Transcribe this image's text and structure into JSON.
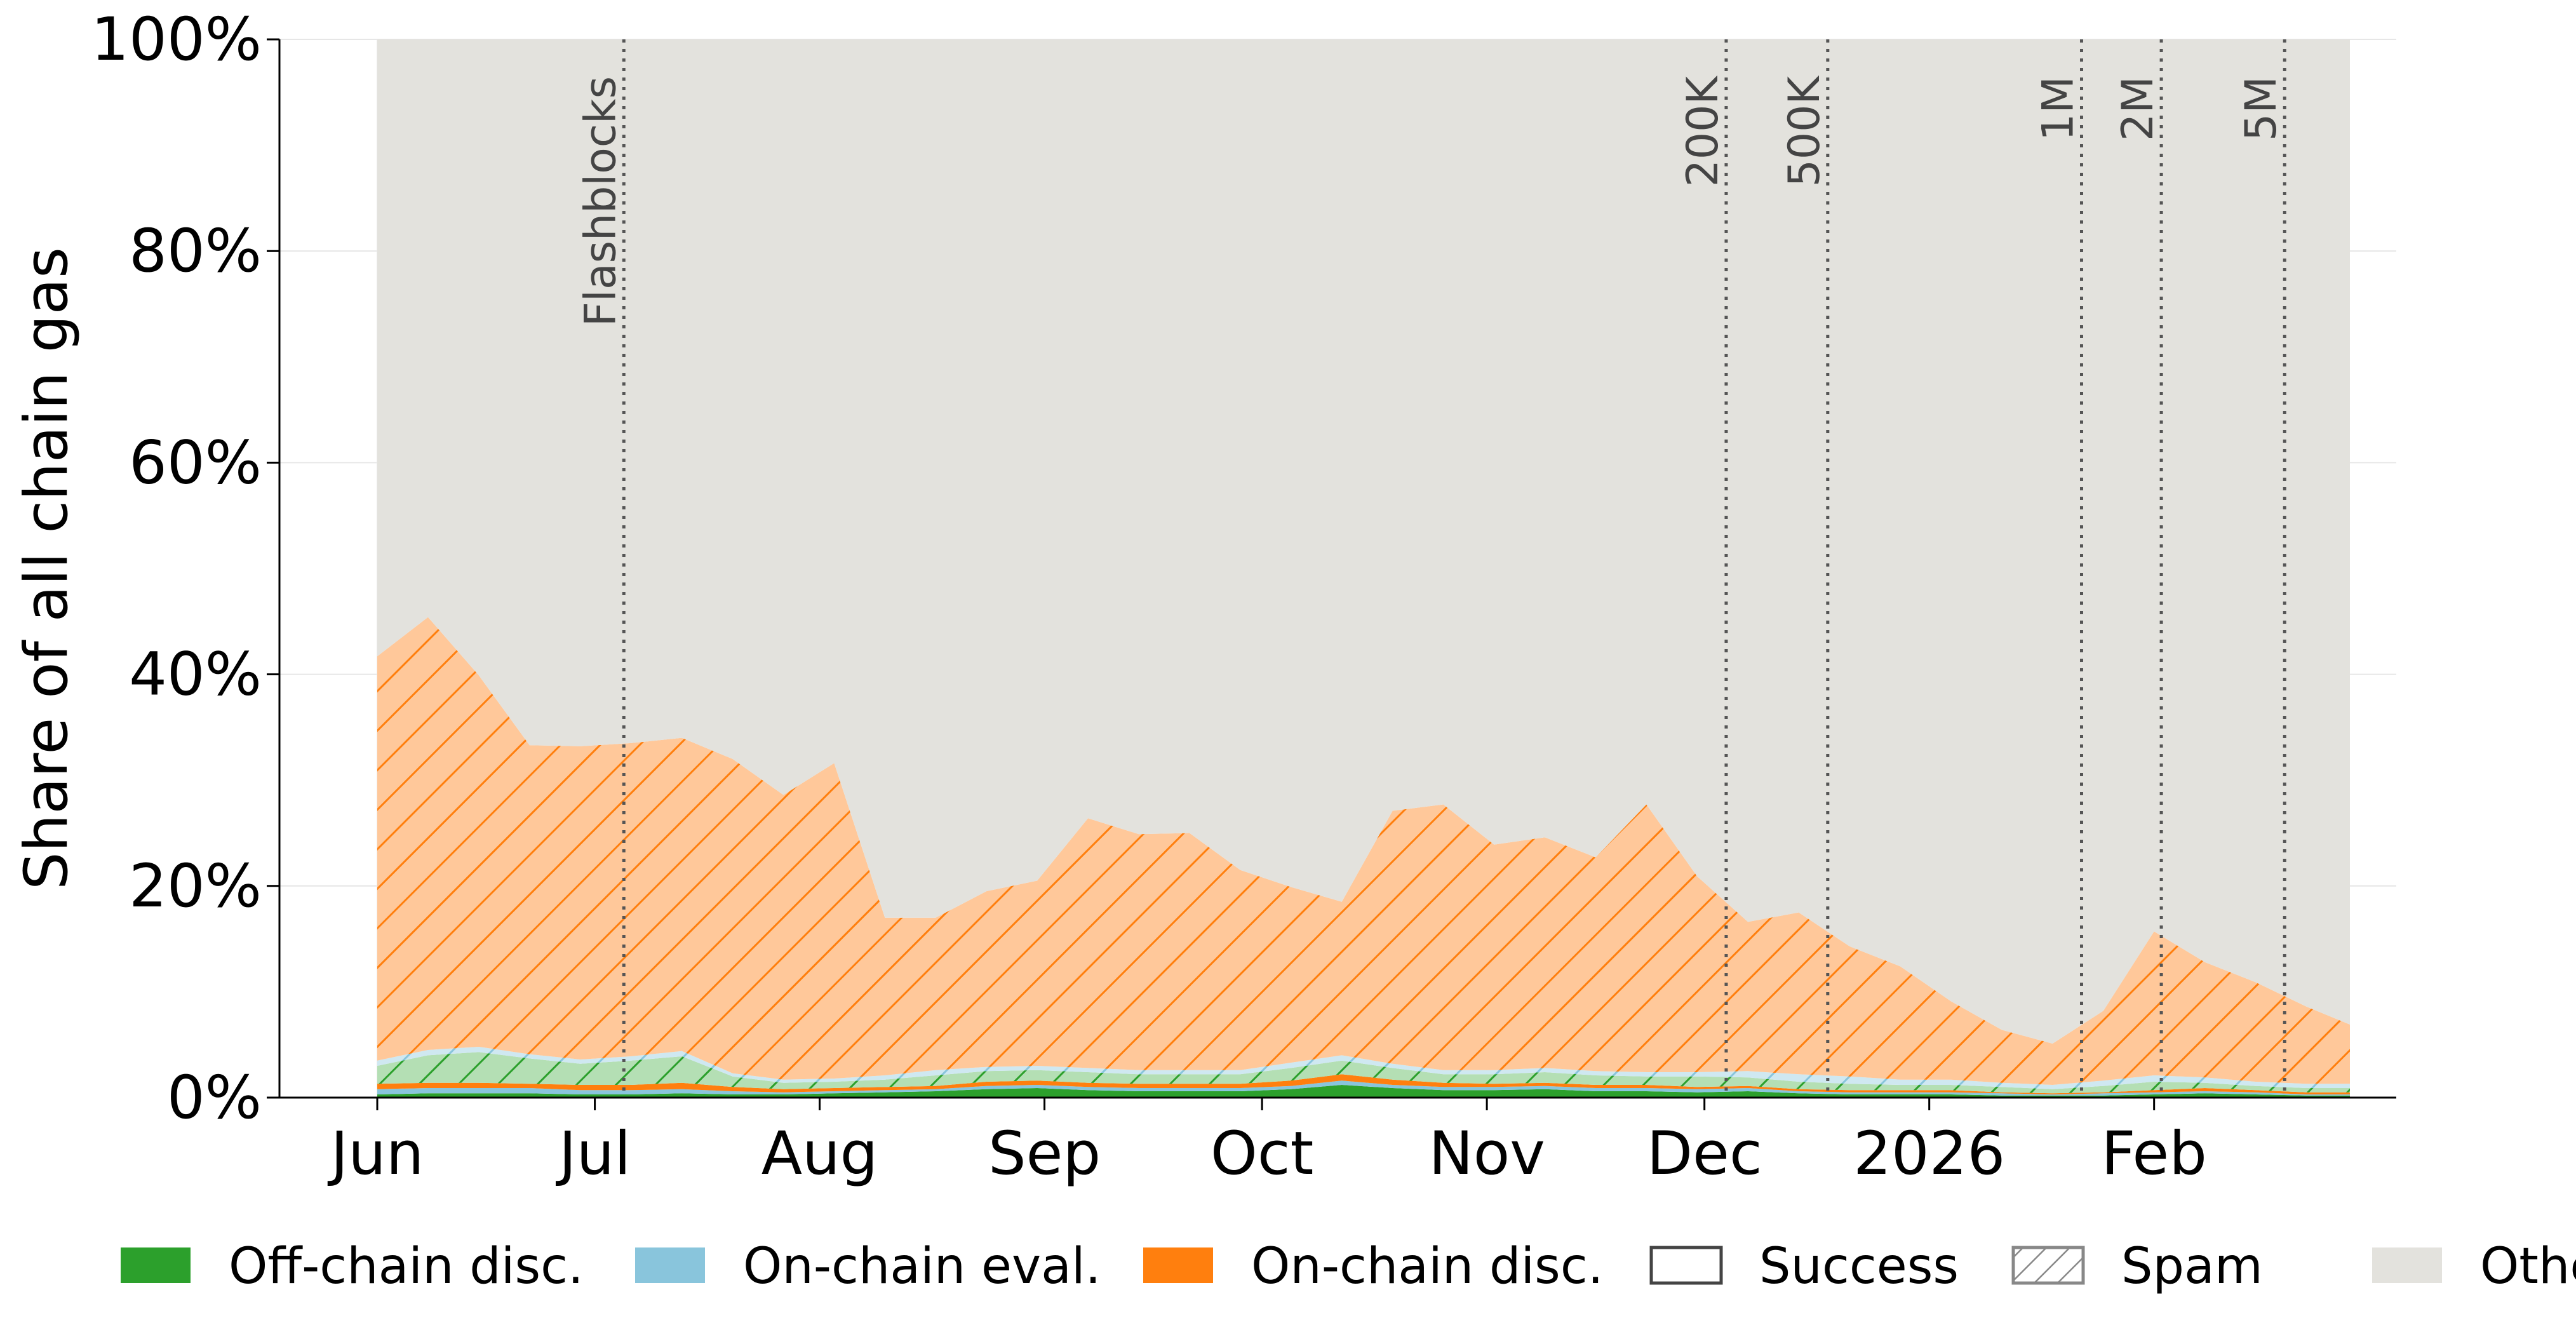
{
  "chart_data": {
    "type": "area",
    "stacked": true,
    "ylabel": "Share of all chain gas",
    "xlabel": "",
    "title": "",
    "ylim": [
      0,
      100
    ],
    "yticks": [
      "0%",
      "20%",
      "40%",
      "60%",
      "80%",
      "100%"
    ],
    "x_domain": [
      "2025-06-01",
      "2026-02-28"
    ],
    "xticks": [
      {
        "date": "2025-06-01",
        "label": "Jun"
      },
      {
        "date": "2025-07-01",
        "label": "Jul"
      },
      {
        "date": "2025-08-01",
        "label": "Aug"
      },
      {
        "date": "2025-09-01",
        "label": "Sep"
      },
      {
        "date": "2025-10-01",
        "label": "Oct"
      },
      {
        "date": "2025-11-01",
        "label": "Nov"
      },
      {
        "date": "2025-12-01",
        "label": "Dec"
      },
      {
        "date": "2026-01-01",
        "label": "2026"
      },
      {
        "date": "2026-02-01",
        "label": "Feb"
      }
    ],
    "grid": true,
    "legend_position": "bottom",
    "x": [
      "2025-06-01",
      "2025-06-08",
      "2025-06-15",
      "2025-06-22",
      "2025-06-29",
      "2025-07-06",
      "2025-07-13",
      "2025-07-20",
      "2025-07-27",
      "2025-08-03",
      "2025-08-10",
      "2025-08-17",
      "2025-08-24",
      "2025-08-31",
      "2025-09-07",
      "2025-09-14",
      "2025-09-21",
      "2025-09-28",
      "2025-10-05",
      "2025-10-12",
      "2025-10-19",
      "2025-10-26",
      "2025-11-02",
      "2025-11-09",
      "2025-11-16",
      "2025-11-23",
      "2025-11-30",
      "2025-12-07",
      "2025-12-14",
      "2025-12-21",
      "2025-12-28",
      "2026-01-04",
      "2026-01-11",
      "2026-01-18",
      "2026-01-25",
      "2026-02-01",
      "2026-02-08",
      "2026-02-15",
      "2026-02-22",
      "2026-02-28"
    ],
    "series": [
      {
        "name": "Off-chain disc.",
        "color": "#2ca02c",
        "values": [
          0.3,
          0.4,
          0.4,
          0.4,
          0.3,
          0.3,
          0.4,
          0.3,
          0.3,
          0.4,
          0.5,
          0.6,
          0.8,
          0.9,
          0.7,
          0.6,
          0.6,
          0.6,
          0.8,
          1.2,
          0.9,
          0.7,
          0.7,
          0.8,
          0.6,
          0.6,
          0.5,
          0.6,
          0.4,
          0.3,
          0.3,
          0.3,
          0.2,
          0.2,
          0.2,
          0.3,
          0.4,
          0.3,
          0.2,
          0.2
        ]
      },
      {
        "name": "On-chain eval.",
        "color": "#89c5dc",
        "values": [
          0.5,
          0.5,
          0.5,
          0.5,
          0.4,
          0.4,
          0.4,
          0.3,
          0.2,
          0.2,
          0.2,
          0.2,
          0.3,
          0.3,
          0.3,
          0.3,
          0.3,
          0.3,
          0.3,
          0.4,
          0.3,
          0.3,
          0.3,
          0.3,
          0.3,
          0.3,
          0.3,
          0.3,
          0.2,
          0.2,
          0.2,
          0.2,
          0.2,
          0.1,
          0.2,
          0.2,
          0.2,
          0.2,
          0.1,
          0.1
        ]
      },
      {
        "name": "On-chain disc.",
        "color": "#ff7f0e",
        "values": [
          0.5,
          0.5,
          0.5,
          0.4,
          0.5,
          0.5,
          0.6,
          0.4,
          0.3,
          0.3,
          0.3,
          0.3,
          0.4,
          0.4,
          0.4,
          0.4,
          0.4,
          0.4,
          0.5,
          0.6,
          0.5,
          0.4,
          0.3,
          0.3,
          0.3,
          0.3,
          0.2,
          0.2,
          0.2,
          0.2,
          0.2,
          0.2,
          0.1,
          0.1,
          0.1,
          0.2,
          0.3,
          0.2,
          0.2,
          0.2
        ]
      },
      {
        "name": "Off-chain disc. (spam)",
        "color": "#2ca02c",
        "values": [
          1.7,
          2.6,
          2.9,
          2.4,
          2.0,
          2.3,
          2.5,
          1.0,
          0.6,
          0.6,
          0.7,
          1.0,
          1.0,
          1.0,
          1.0,
          0.9,
          0.9,
          0.9,
          1.2,
          1.3,
          1.1,
          0.8,
          0.9,
          1.0,
          0.9,
          0.8,
          1.0,
          0.8,
          0.7,
          0.6,
          0.5,
          0.5,
          0.5,
          0.4,
          0.6,
          0.8,
          0.5,
          0.4,
          0.4,
          0.4
        ]
      },
      {
        "name": "On-chain eval. (spam)",
        "color": "#89c5dc",
        "values": [
          0.5,
          0.5,
          0.5,
          0.4,
          0.4,
          0.4,
          0.5,
          0.3,
          0.3,
          0.3,
          0.4,
          0.5,
          0.4,
          0.4,
          0.4,
          0.4,
          0.4,
          0.4,
          0.5,
          0.5,
          0.4,
          0.4,
          0.4,
          0.4,
          0.4,
          0.4,
          0.4,
          0.6,
          0.7,
          0.7,
          0.5,
          0.5,
          0.4,
          0.4,
          0.5,
          0.6,
          0.5,
          0.4,
          0.4,
          0.4
        ]
      },
      {
        "name": "On-chain disc. (spam)",
        "color": "#ff7f0e",
        "values": [
          38.2,
          40.9,
          35.1,
          29.2,
          29.6,
          29.6,
          29.6,
          29.7,
          26.9,
          29.8,
          14.9,
          14.4,
          16.6,
          17.5,
          23.6,
          22.3,
          22.4,
          18.9,
          16.6,
          14.5,
          23.9,
          25.1,
          21.3,
          21.8,
          20.2,
          25.3,
          18.5,
          14.1,
          15.3,
          12.3,
          10.7,
          7.4,
          5.0,
          3.9,
          6.6,
          13.6,
          10.9,
          9.4,
          7.3,
          5.6
        ]
      },
      {
        "name": "Other",
        "color": "#e3e2dd",
        "values": [
          58.3,
          54.6,
          60.1,
          66.7,
          66.8,
          66.5,
          66.0,
          68.0,
          71.4,
          68.4,
          83.0,
          83.0,
          80.5,
          79.5,
          73.6,
          75.1,
          75.0,
          78.5,
          80.1,
          81.5,
          72.9,
          72.3,
          76.1,
          75.4,
          77.3,
          72.3,
          79.1,
          83.4,
          82.5,
          85.7,
          87.6,
          90.9,
          93.6,
          94.9,
          91.8,
          84.3,
          87.2,
          89.1,
          91.4,
          93.1
        ]
      }
    ],
    "event_markers": [
      {
        "date": "2025-07-05",
        "label": "Flashblocks"
      },
      {
        "date": "2025-12-04",
        "label": "200K"
      },
      {
        "date": "2025-12-18",
        "label": "500K"
      },
      {
        "date": "2026-01-22",
        "label": "1M"
      },
      {
        "date": "2026-02-02",
        "label": "2M"
      },
      {
        "date": "2026-02-19",
        "label": "5M"
      }
    ],
    "legend": [
      {
        "label": "Off-chain disc.",
        "style": "solid",
        "color": "#2ca02c"
      },
      {
        "label": "On-chain eval.",
        "style": "solid",
        "color": "#89c5dc"
      },
      {
        "label": "On-chain disc.",
        "style": "solid",
        "color": "#ff7f0e"
      },
      {
        "label": "Success",
        "style": "outline",
        "color": "#444444"
      },
      {
        "label": "Spam",
        "style": "hatch",
        "color": "#888888"
      },
      {
        "label": "Other",
        "style": "solid",
        "color": "#e3e2dd"
      }
    ]
  }
}
